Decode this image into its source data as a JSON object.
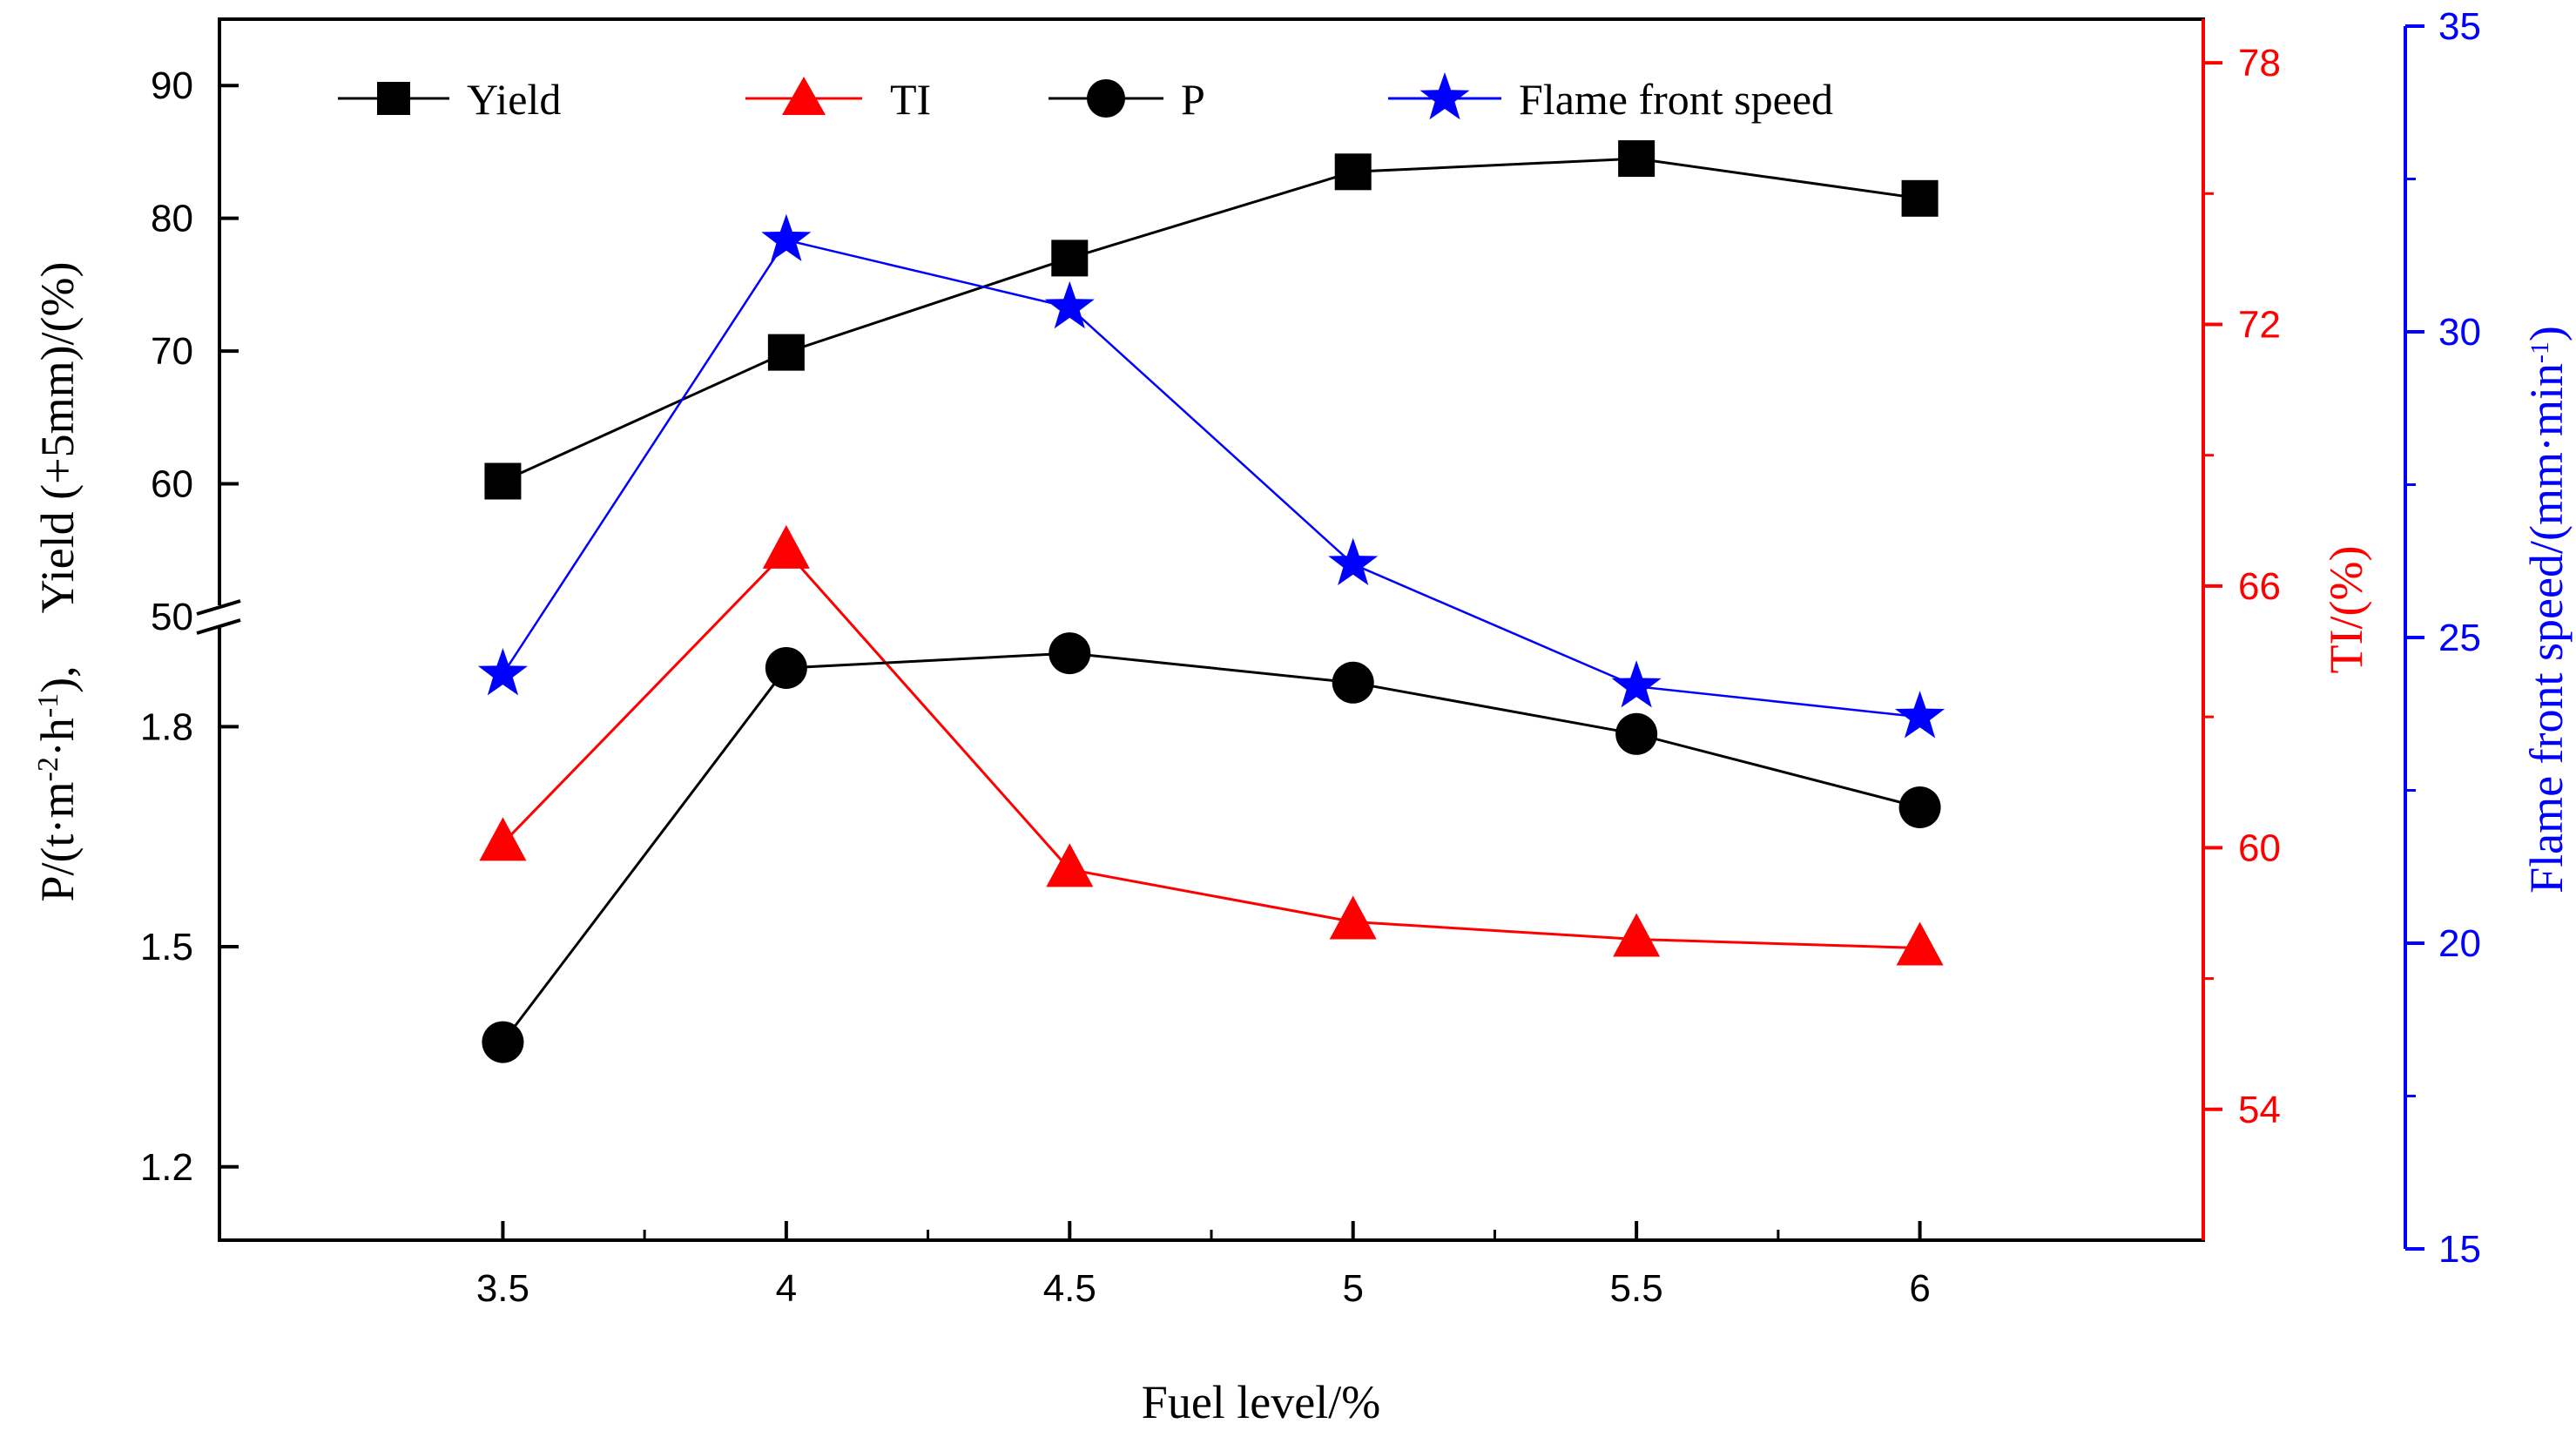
{
  "chart_data": {
    "type": "line",
    "title": "",
    "x": [
      3.5,
      4,
      4.5,
      5,
      5.5,
      6
    ],
    "x_tick_labels": [
      "3.5",
      "4",
      "4.5",
      "5",
      "5.5",
      "6"
    ],
    "xlabel": "Fuel level/%",
    "xlim": [
      3.0,
      6.5
    ],
    "left_axis": {
      "label": "P/(t·m-2·h-1),    Yield (+5mm)/(%)",
      "label_parts": {
        "p_prefix": "P/(t·m",
        "p_exp1": "-2",
        "p_mid": "·h",
        "p_exp2": "-1",
        "p_suffix": "),",
        "yield": "Yield (+5mm)/(%)"
      },
      "upper_segment": {
        "ylim": [
          50,
          95
        ],
        "ticks": [
          "50",
          "60",
          "70",
          "80",
          "90"
        ]
      },
      "lower_segment": {
        "ylim": [
          1.1,
          1.95
        ],
        "ticks": [
          "1.2",
          "1.5",
          "1.8"
        ]
      },
      "axis_break": true
    },
    "right_axis_ti": {
      "label": "TI/(%)",
      "ylim": [
        51,
        79
      ],
      "ticks": [
        "54",
        "60",
        "66",
        "72",
        "78"
      ],
      "color": "#ff0000"
    },
    "right_axis_speed": {
      "label_parts": {
        "prefix": "Flame front speed/(mm·min",
        "exp": "-1",
        "suffix": ")"
      },
      "ylim": [
        15,
        35
      ],
      "ticks": [
        "15",
        "20",
        "25",
        "30",
        "35"
      ],
      "color": "#0000ff"
    },
    "series": [
      {
        "name": "Yield",
        "axis": "left_upper",
        "marker": "square",
        "color": "#000000",
        "values": [
          60.2,
          69.9,
          77.0,
          83.5,
          84.5,
          81.5
        ]
      },
      {
        "name": "TI",
        "axis": "right_ti",
        "marker": "triangle",
        "color": "#ff0000",
        "values": [
          60.1,
          66.8,
          59.5,
          58.3,
          57.9,
          57.7
        ]
      },
      {
        "name": "P",
        "axis": "left_lower",
        "marker": "circle",
        "color": "#000000",
        "values": [
          1.37,
          1.88,
          1.9,
          1.86,
          1.79,
          1.69
        ]
      },
      {
        "name": "Flame front speed",
        "axis": "right_speed",
        "marker": "star",
        "color": "#0000ff",
        "values": [
          24.4,
          31.5,
          30.4,
          26.2,
          24.2,
          23.7
        ]
      }
    ],
    "legend": {
      "placement": "top",
      "entries": [
        "Yield",
        "TI",
        "P",
        "Flame front speed"
      ]
    },
    "grid": false
  }
}
